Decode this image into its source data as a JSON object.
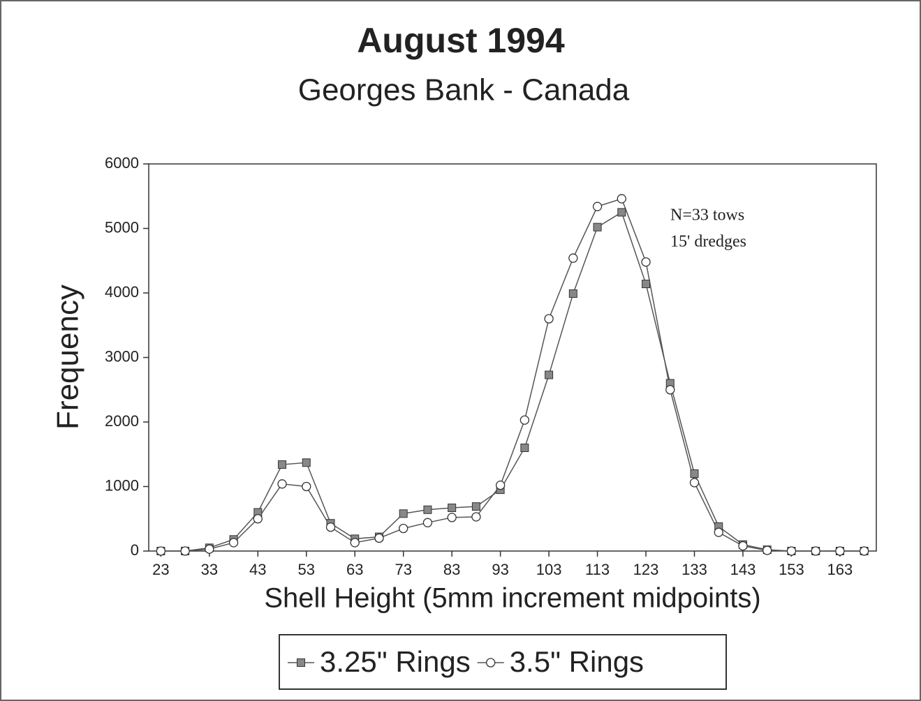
{
  "chart_data": {
    "type": "line",
    "title": "August 1994",
    "subtitle": "Georges Bank - Canada",
    "x_label": "Shell Height (5mm increment midpoints)",
    "y_label": "Frequency",
    "annotations": [
      "N=33 tows",
      "15' dredges"
    ],
    "x": [
      23,
      28,
      33,
      38,
      43,
      48,
      53,
      58,
      63,
      68,
      73,
      78,
      83,
      88,
      93,
      98,
      103,
      108,
      113,
      118,
      123,
      128,
      133,
      138,
      143,
      148,
      153,
      158,
      163,
      168
    ],
    "series": [
      {
        "name": "3.25\" Rings",
        "color": "#555555",
        "marker": "square",
        "values": [
          0,
          0,
          50,
          180,
          600,
          1340,
          1370,
          430,
          190,
          220,
          580,
          640,
          670,
          690,
          950,
          1600,
          2730,
          3990,
          5020,
          5250,
          4140,
          2600,
          1200,
          380,
          100,
          20,
          0,
          0,
          0,
          0
        ]
      },
      {
        "name": "3.5\" Rings",
        "color": "#555555",
        "marker": "circle",
        "values": [
          0,
          0,
          30,
          130,
          500,
          1040,
          1000,
          370,
          130,
          200,
          350,
          440,
          520,
          530,
          1020,
          2030,
          3600,
          4540,
          5340,
          5460,
          4480,
          2500,
          1060,
          290,
          80,
          10,
          0,
          0,
          0,
          0
        ]
      }
    ],
    "xlim": [
      20.5,
      170.5
    ],
    "xticks": [
      23,
      33,
      43,
      53,
      63,
      73,
      83,
      93,
      103,
      113,
      123,
      133,
      143,
      153,
      163
    ],
    "ylim": [
      0,
      6000
    ],
    "yticks": [
      0,
      1000,
      2000,
      3000,
      4000,
      5000,
      6000
    ],
    "grid": false,
    "legend": "bottom"
  }
}
